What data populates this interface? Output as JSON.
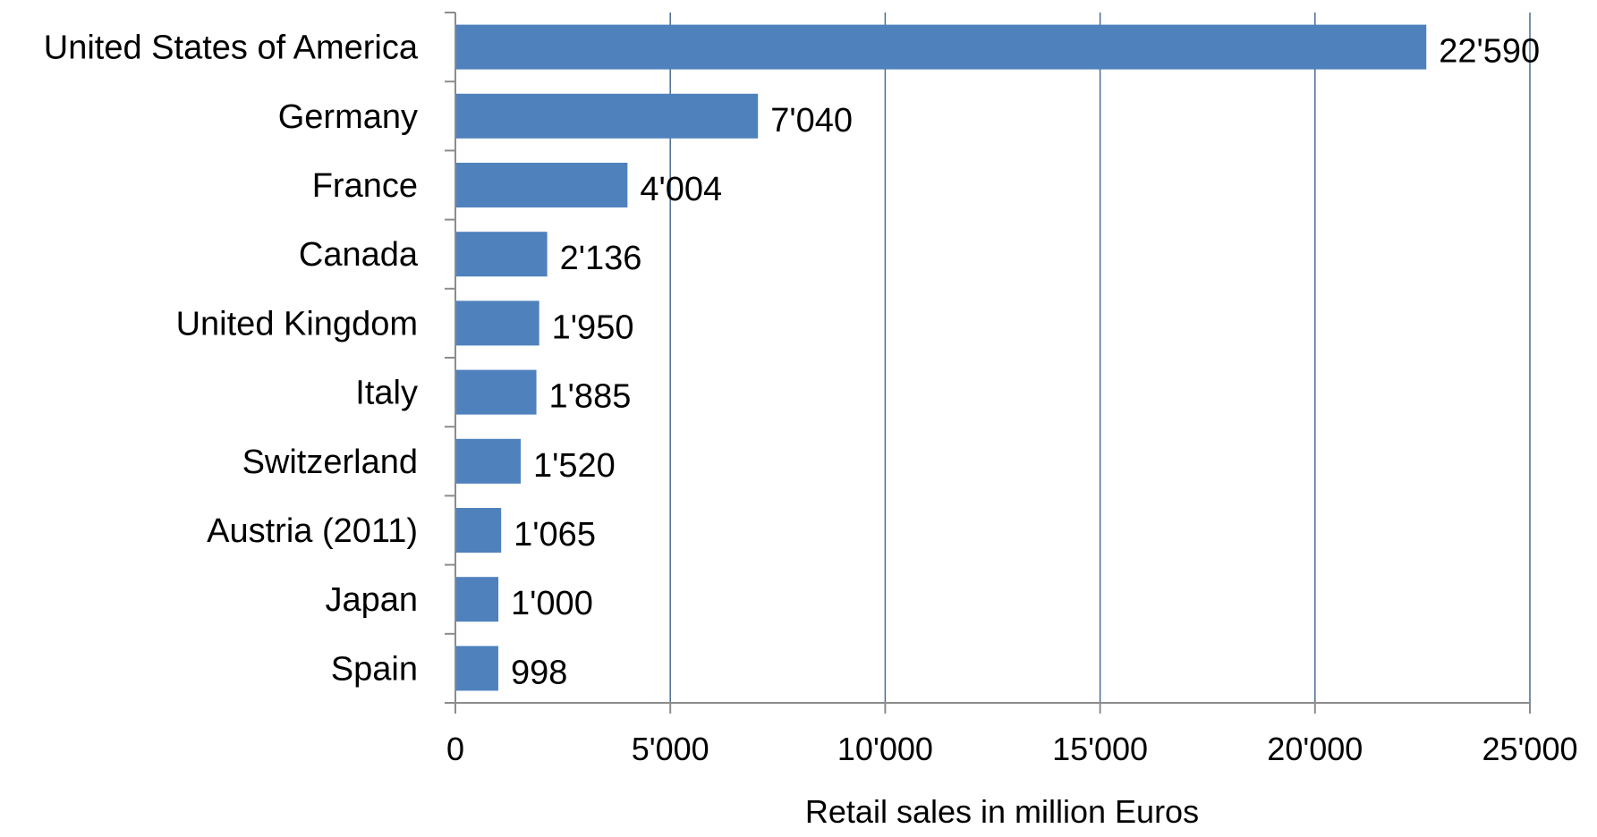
{
  "chart_data": {
    "type": "bar",
    "orientation": "horizontal",
    "categories": [
      "United States of America",
      "Germany",
      "France",
      "Canada",
      "United Kingdom",
      "Italy",
      "Switzerland",
      "Austria (2011)",
      "Japan",
      "Spain"
    ],
    "values": [
      22590,
      7040,
      4004,
      2136,
      1950,
      1885,
      1520,
      1065,
      1000,
      998
    ],
    "value_labels": [
      "22'590",
      "7'040",
      "4'004",
      "2'136",
      "1'950",
      "1'885",
      "1'520",
      "1'065",
      "1'000",
      "998"
    ],
    "xlabel": "Retail sales in million Euros",
    "ylabel": "",
    "title": "",
    "xlim": [
      0,
      25000
    ],
    "xticks": [
      0,
      5000,
      10000,
      15000,
      20000,
      25000
    ],
    "xtick_labels": [
      "0",
      "5'000",
      "10'000",
      "15'000",
      "20'000",
      "25'000"
    ],
    "grid": "vertical",
    "legend": "none",
    "colors": {
      "bar": "#4F81BD",
      "grid": "#4A6B94",
      "axis": "#8C8C8C",
      "text": "#000000"
    }
  }
}
